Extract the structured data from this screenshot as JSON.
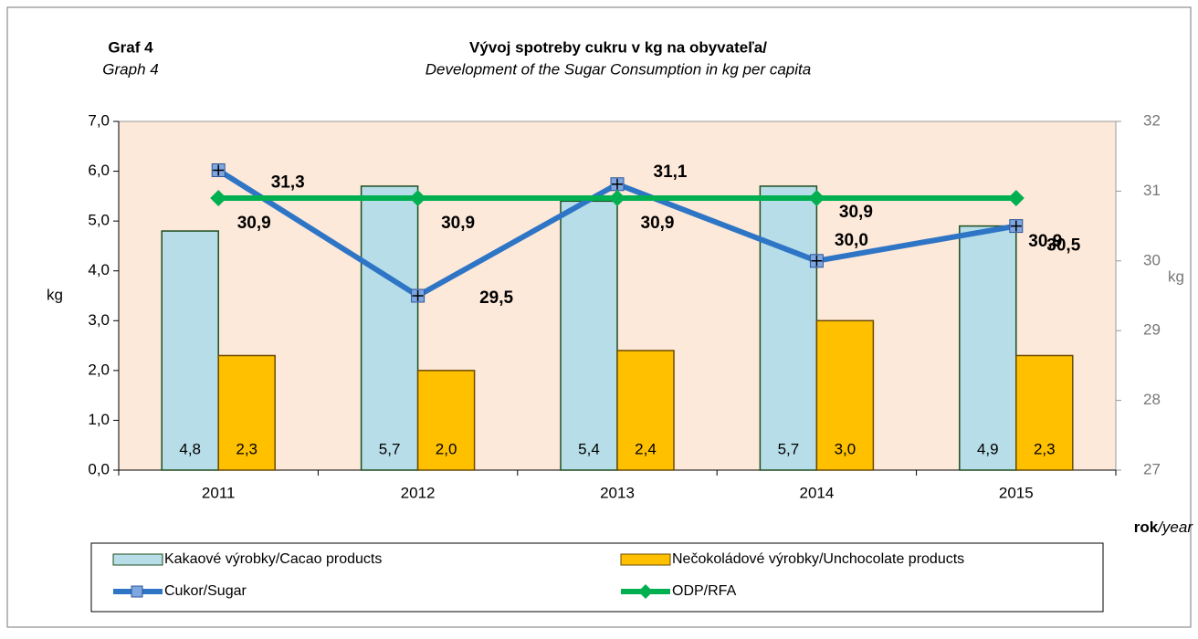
{
  "chart_data": {
    "type": "bar-line",
    "graph_label": "Graf 4",
    "graph_label_en": "Graph  4",
    "title": "Vývoj spotreby cukru v kg na obyvateľa/",
    "subtitle": "Development of the Sugar Consumption in kg per capita",
    "ylabel": "kg",
    "y2label": "kg",
    "xlabel": [
      "rok",
      "/year"
    ],
    "categories": [
      "2011",
      "2012",
      "2013",
      "2014",
      "2015"
    ],
    "ylim": [
      0,
      7
    ],
    "yticks": [
      {
        "value": 0,
        "label": "0,0"
      },
      {
        "value": 1,
        "label": "1,0"
      },
      {
        "value": 2,
        "label": "2,0"
      },
      {
        "value": 3,
        "label": "3,0"
      },
      {
        "value": 4,
        "label": "4,0"
      },
      {
        "value": 5,
        "label": "5,0"
      },
      {
        "value": 6,
        "label": "6,0"
      },
      {
        "value": 7,
        "label": "7,0"
      }
    ],
    "y2lim": [
      27,
      32
    ],
    "y2ticks": [
      27,
      28,
      29,
      30,
      31,
      32
    ],
    "series": [
      {
        "name": "Kakaové výrobky/Cacao products",
        "type": "bar",
        "color": "#b6dde8",
        "values": [
          4.8,
          5.7,
          5.4,
          5.7,
          4.9
        ],
        "value_labels": [
          "4,8",
          "5,7",
          "5,4",
          "5,7",
          "4,9"
        ]
      },
      {
        "name": "Nečokoládové výrobky/Unchocolate  products",
        "type": "bar",
        "color": "#ffc000",
        "values": [
          2.3,
          2.0,
          2.4,
          3.0,
          2.3
        ],
        "value_labels": [
          "2,3",
          "2,0",
          "2,4",
          "3,0",
          "2,3"
        ]
      },
      {
        "name": "Cukor/Sugar",
        "type": "line",
        "axis": "y2",
        "color": "#2e75c6",
        "values": [
          31.3,
          29.5,
          31.1,
          30.0,
          30.5
        ],
        "value_labels": [
          "31,3",
          "29,5",
          "31,1",
          "30,0",
          "30,5"
        ]
      },
      {
        "name": "ODP/RFA",
        "type": "line",
        "axis": "y2",
        "color": "#00b050",
        "values": [
          30.9,
          30.9,
          30.9,
          30.9,
          30.9
        ],
        "value_labels": [
          "30,9",
          "30,9",
          "30,9",
          "30,9",
          "30,9"
        ]
      }
    ]
  }
}
